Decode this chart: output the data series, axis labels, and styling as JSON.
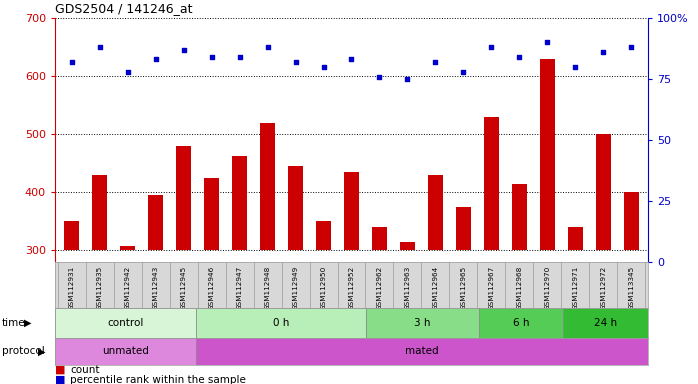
{
  "title": "GDS2504 / 141246_at",
  "samples": [
    "GSM112931",
    "GSM112935",
    "GSM112942",
    "GSM112943",
    "GSM112945",
    "GSM112946",
    "GSM112947",
    "GSM112948",
    "GSM112949",
    "GSM112950",
    "GSM112952",
    "GSM112962",
    "GSM112963",
    "GSM112964",
    "GSM112965",
    "GSM112967",
    "GSM112968",
    "GSM112970",
    "GSM112971",
    "GSM112972",
    "GSM113345"
  ],
  "counts": [
    350,
    430,
    308,
    395,
    480,
    425,
    462,
    520,
    445,
    350,
    435,
    340,
    315,
    430,
    375,
    530,
    415,
    630,
    340,
    500,
    400
  ],
  "percentile_ranks": [
    82,
    88,
    78,
    83,
    87,
    84,
    84,
    88,
    82,
    80,
    83,
    76,
    75,
    82,
    78,
    88,
    84,
    90,
    80,
    86,
    88
  ],
  "ylim_left": [
    280,
    700
  ],
  "ylim_right": [
    0,
    100
  ],
  "yticks_left": [
    300,
    400,
    500,
    600,
    700
  ],
  "yticks_right": [
    0,
    25,
    50,
    75,
    100
  ],
  "bar_color": "#cc0000",
  "dot_color": "#0000cc",
  "time_groups": [
    {
      "label": "control",
      "start": 0,
      "end": 5,
      "color": "#d8f5d8"
    },
    {
      "label": "0 h",
      "start": 5,
      "end": 11,
      "color": "#b8eeb8"
    },
    {
      "label": "3 h",
      "start": 11,
      "end": 15,
      "color": "#88dd88"
    },
    {
      "label": "6 h",
      "start": 15,
      "end": 18,
      "color": "#55cc55"
    },
    {
      "label": "24 h",
      "start": 18,
      "end": 21,
      "color": "#33bb33"
    }
  ],
  "protocol_groups": [
    {
      "label": "unmated",
      "start": 0,
      "end": 5,
      "color": "#dd88dd"
    },
    {
      "label": "mated",
      "start": 5,
      "end": 21,
      "color": "#cc55cc"
    }
  ],
  "legend_items": [
    {
      "color": "#cc0000",
      "label": "count"
    },
    {
      "color": "#0000cc",
      "label": "percentile rank within the sample"
    }
  ],
  "axis_color_left": "#cc0000",
  "axis_color_right": "#0000cc",
  "plot_bg": "#ffffff"
}
